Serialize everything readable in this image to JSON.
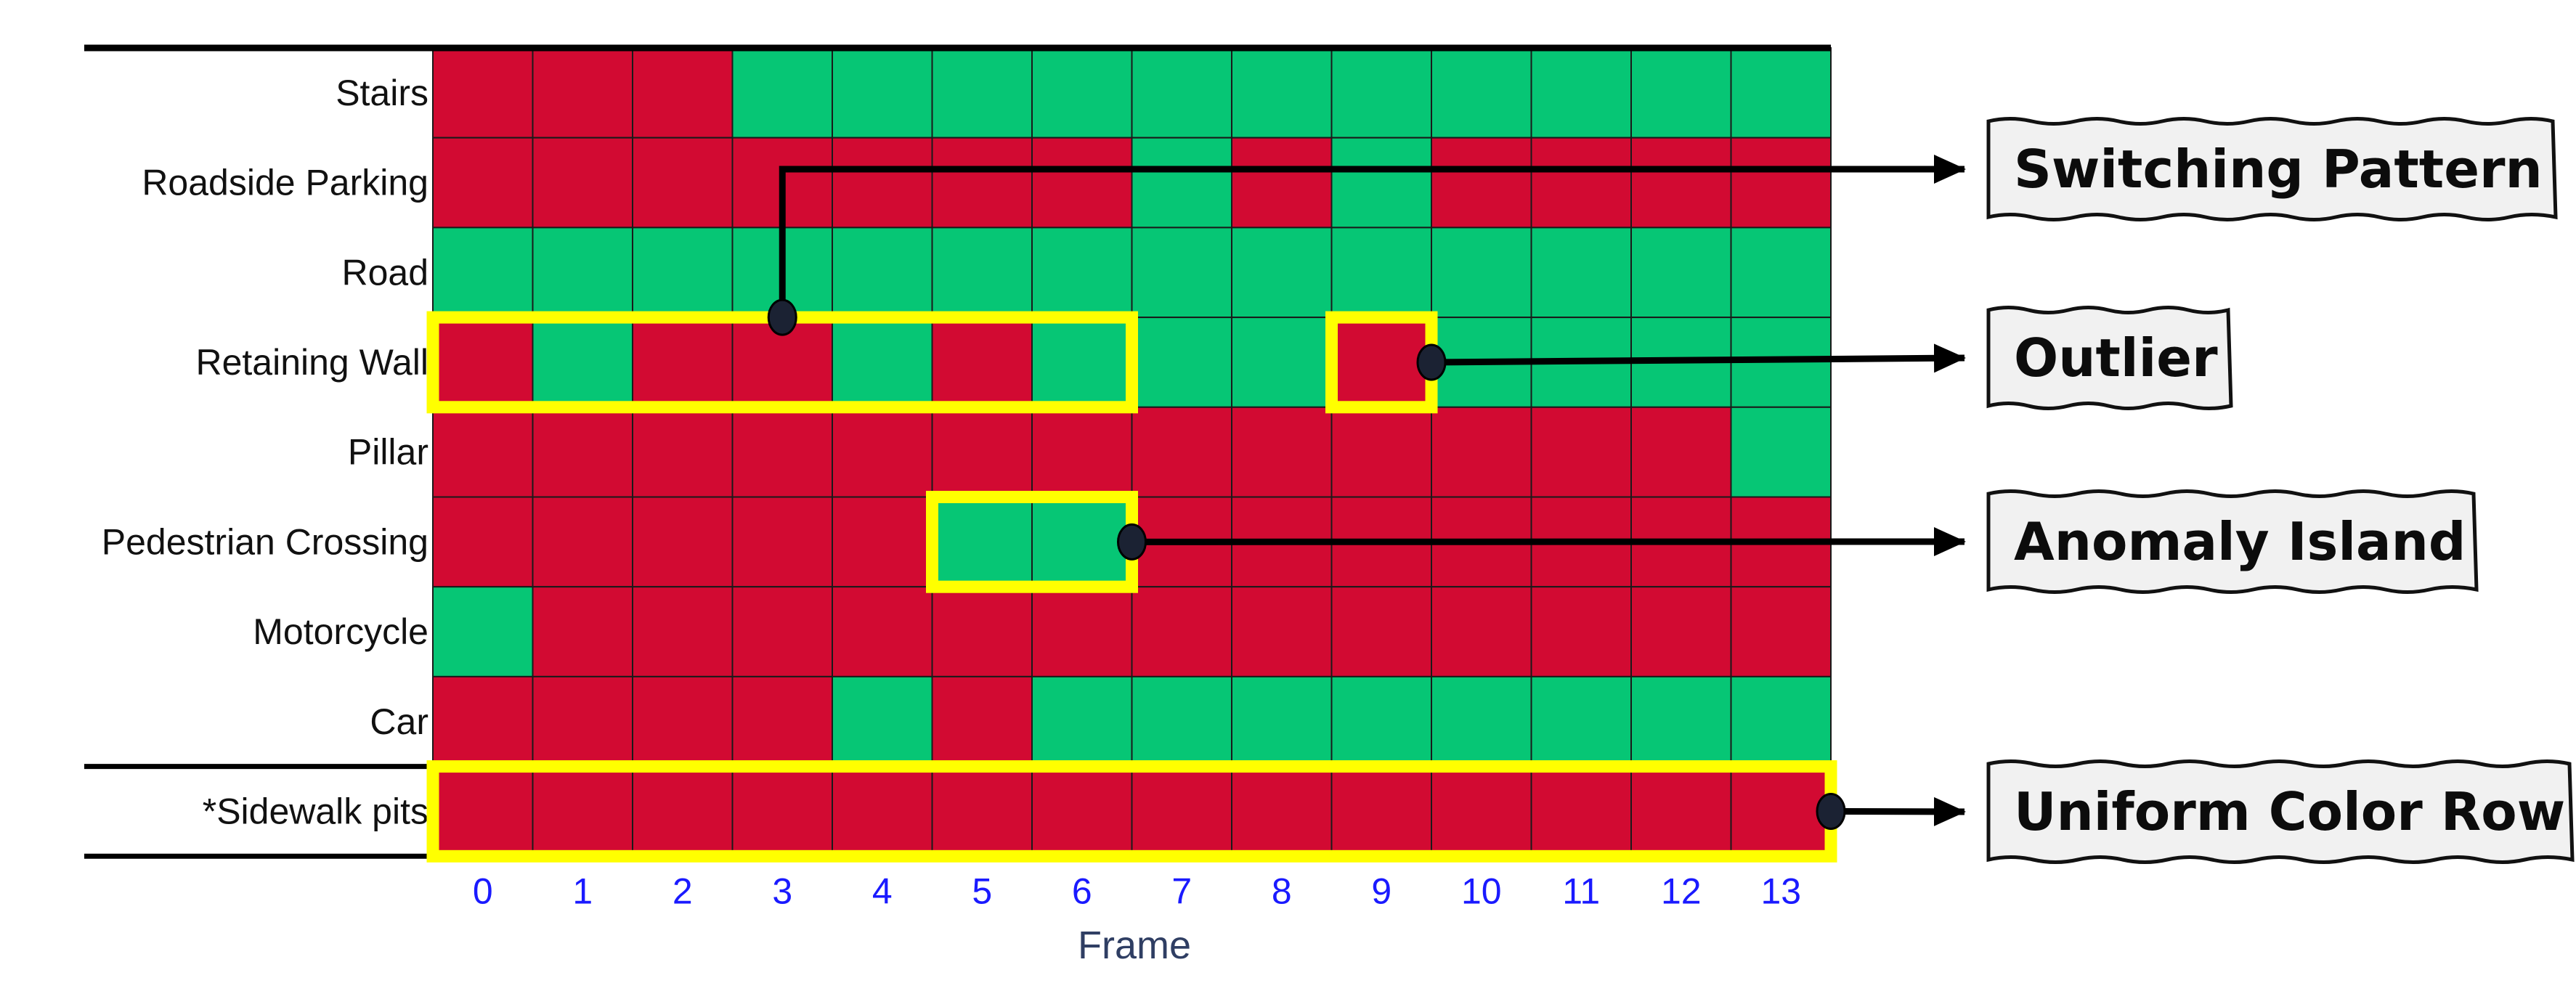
{
  "chart_data": {
    "type": "heatmap",
    "title": "",
    "xlabel": "Frame",
    "ylabel": "",
    "x": [
      0,
      1,
      2,
      3,
      4,
      5,
      6,
      7,
      8,
      9,
      10,
      11,
      12,
      13
    ],
    "rows": [
      {
        "label": "Stairs",
        "values": [
          0,
          0,
          0,
          1,
          1,
          1,
          1,
          1,
          1,
          1,
          1,
          1,
          1,
          1
        ]
      },
      {
        "label": "Roadside Parking",
        "values": [
          0,
          0,
          0,
          0,
          0,
          0,
          0,
          1,
          0,
          1,
          0,
          0,
          0,
          0
        ]
      },
      {
        "label": "Road",
        "values": [
          1,
          1,
          1,
          1,
          1,
          1,
          1,
          1,
          1,
          1,
          1,
          1,
          1,
          1
        ]
      },
      {
        "label": "Retaining Wall",
        "values": [
          0,
          1,
          0,
          0,
          1,
          0,
          1,
          1,
          1,
          0,
          1,
          1,
          1,
          1
        ]
      },
      {
        "label": "Pillar",
        "values": [
          0,
          0,
          0,
          0,
          0,
          0,
          0,
          0,
          0,
          0,
          0,
          0,
          0,
          1
        ]
      },
      {
        "label": "Pedestrian Crossing",
        "values": [
          0,
          0,
          0,
          0,
          0,
          1,
          1,
          0,
          0,
          0,
          0,
          0,
          0,
          0
        ]
      },
      {
        "label": "Motorcycle",
        "values": [
          1,
          0,
          0,
          0,
          0,
          0,
          0,
          0,
          0,
          0,
          0,
          0,
          0,
          0
        ]
      },
      {
        "label": "Car",
        "values": [
          0,
          0,
          0,
          0,
          1,
          0,
          1,
          1,
          1,
          1,
          1,
          1,
          1,
          1
        ]
      },
      {
        "label": "*Sidewalk pits",
        "values": [
          0,
          0,
          0,
          0,
          0,
          0,
          0,
          0,
          0,
          0,
          0,
          0,
          0,
          0
        ],
        "label_color": "#ee82ee"
      }
    ],
    "colors": {
      "0": "#d20a32",
      "1": "#06c675",
      "highlight": "#ffff00",
      "tick": "#1a1aff"
    },
    "highlights": [
      {
        "row": 3,
        "from": 0,
        "to": 6
      },
      {
        "row": 3,
        "from": 9,
        "to": 9
      },
      {
        "row": 5,
        "from": 5,
        "to": 6
      },
      {
        "row": 8,
        "from": 0,
        "to": 13
      }
    ],
    "annotations": [
      {
        "text": "Switching Pattern",
        "highlight": 0
      },
      {
        "text": "Outlier",
        "highlight": 1
      },
      {
        "text": "Anomaly Island",
        "highlight": 2
      },
      {
        "text": "Uniform Color Row",
        "highlight": 3
      }
    ]
  }
}
